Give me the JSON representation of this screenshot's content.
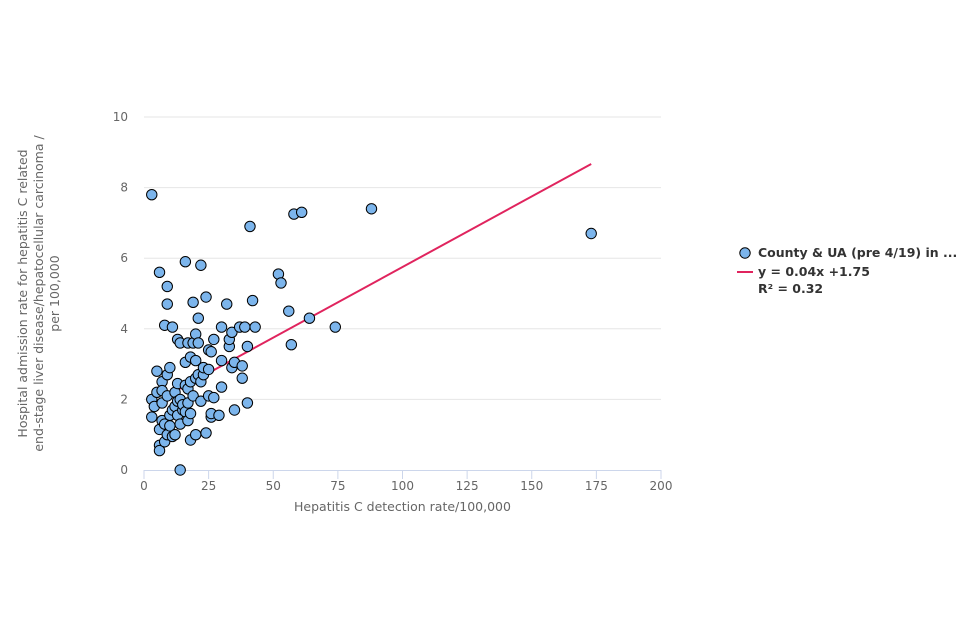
{
  "chart_data": {
    "type": "scatter",
    "title": "",
    "xlabel": "Hepatitis C detection rate/100,000",
    "ylabel_lines": [
      "Hospital admission rate for hepatitis C related",
      "end-stage liver disease/hepatocellular carcinoma /",
      "per 100,000"
    ],
    "xlim": [
      0,
      200
    ],
    "ylim": [
      0,
      10
    ],
    "xticks": [
      0,
      25,
      50,
      75,
      100,
      125,
      150,
      175,
      200
    ],
    "yticks": [
      0,
      2,
      4,
      6,
      8,
      10
    ],
    "grid": "horizontal",
    "legend_position": "right",
    "series": [
      {
        "name": "County & UA (pre 4/19) in ...",
        "kind": "scatter",
        "color": "#7cb5ec",
        "points": [
          [
            3,
            7.8
          ],
          [
            6,
            5.6
          ],
          [
            9,
            5.2
          ],
          [
            8,
            4.1
          ],
          [
            9,
            4.7
          ],
          [
            11,
            4.05
          ],
          [
            3,
            2.0
          ],
          [
            3,
            1.5
          ],
          [
            4,
            1.8
          ],
          [
            5,
            2.2
          ],
          [
            5,
            2.8
          ],
          [
            6,
            1.15
          ],
          [
            6,
            0.7
          ],
          [
            6,
            0.55
          ],
          [
            7,
            2.5
          ],
          [
            7,
            1.9
          ],
          [
            7,
            1.4
          ],
          [
            7,
            2.25
          ],
          [
            8,
            1.3
          ],
          [
            8,
            0.8
          ],
          [
            9,
            1.0
          ],
          [
            9,
            2.1
          ],
          [
            9,
            2.7
          ],
          [
            10,
            2.9
          ],
          [
            10,
            1.55
          ],
          [
            10,
            1.25
          ],
          [
            11,
            1.7
          ],
          [
            11,
            0.95
          ],
          [
            12,
            2.2
          ],
          [
            12,
            1.0
          ],
          [
            12,
            1.8
          ],
          [
            13,
            2.45
          ],
          [
            13,
            1.55
          ],
          [
            13,
            1.95
          ],
          [
            13,
            3.7
          ],
          [
            14,
            3.6
          ],
          [
            14,
            2.0
          ],
          [
            14,
            1.3
          ],
          [
            14,
            0.0
          ],
          [
            15,
            1.7
          ],
          [
            15,
            1.85
          ],
          [
            16,
            2.4
          ],
          [
            16,
            3.05
          ],
          [
            16,
            5.9
          ],
          [
            16,
            1.65
          ],
          [
            17,
            3.6
          ],
          [
            17,
            2.3
          ],
          [
            17,
            1.4
          ],
          [
            17,
            1.9
          ],
          [
            18,
            0.85
          ],
          [
            18,
            3.2
          ],
          [
            18,
            2.5
          ],
          [
            18,
            1.6
          ],
          [
            19,
            2.1
          ],
          [
            19,
            4.75
          ],
          [
            19,
            3.6
          ],
          [
            20,
            3.85
          ],
          [
            20,
            3.1
          ],
          [
            20,
            2.6
          ],
          [
            20,
            1.0
          ],
          [
            21,
            4.3
          ],
          [
            21,
            3.6
          ],
          [
            21,
            2.7
          ],
          [
            22,
            5.8
          ],
          [
            22,
            2.5
          ],
          [
            22,
            1.95
          ],
          [
            23,
            2.7
          ],
          [
            23,
            2.9
          ],
          [
            24,
            4.9
          ],
          [
            24,
            1.05
          ],
          [
            25,
            3.4
          ],
          [
            25,
            2.85
          ],
          [
            25,
            2.1
          ],
          [
            26,
            3.35
          ],
          [
            26,
            1.5
          ],
          [
            26,
            1.6
          ],
          [
            27,
            3.7
          ],
          [
            27,
            2.05
          ],
          [
            29,
            1.55
          ],
          [
            30,
            4.05
          ],
          [
            30,
            2.35
          ],
          [
            30,
            3.1
          ],
          [
            32,
            4.7
          ],
          [
            33,
            3.5
          ],
          [
            33,
            3.7
          ],
          [
            34,
            3.9
          ],
          [
            34,
            2.9
          ],
          [
            35,
            3.05
          ],
          [
            35,
            1.7
          ],
          [
            37,
            4.05
          ],
          [
            38,
            2.6
          ],
          [
            38,
            2.95
          ],
          [
            39,
            4.05
          ],
          [
            40,
            1.9
          ],
          [
            40,
            3.5
          ],
          [
            41,
            6.9
          ],
          [
            42,
            4.8
          ],
          [
            43,
            4.05
          ],
          [
            52,
            5.55
          ],
          [
            53,
            5.3
          ],
          [
            56,
            4.5
          ],
          [
            57,
            3.55
          ],
          [
            58,
            7.25
          ],
          [
            61,
            7.3
          ],
          [
            64,
            4.3
          ],
          [
            74,
            4.05
          ],
          [
            88,
            7.4
          ],
          [
            173,
            6.7
          ]
        ]
      },
      {
        "name": "y = 0.04x +1.75",
        "name_line2": "R² = 0.32",
        "kind": "line",
        "color": "#e0245e",
        "slope": 0.04,
        "intercept": 1.75,
        "x_range": [
          3,
          173
        ]
      }
    ]
  }
}
